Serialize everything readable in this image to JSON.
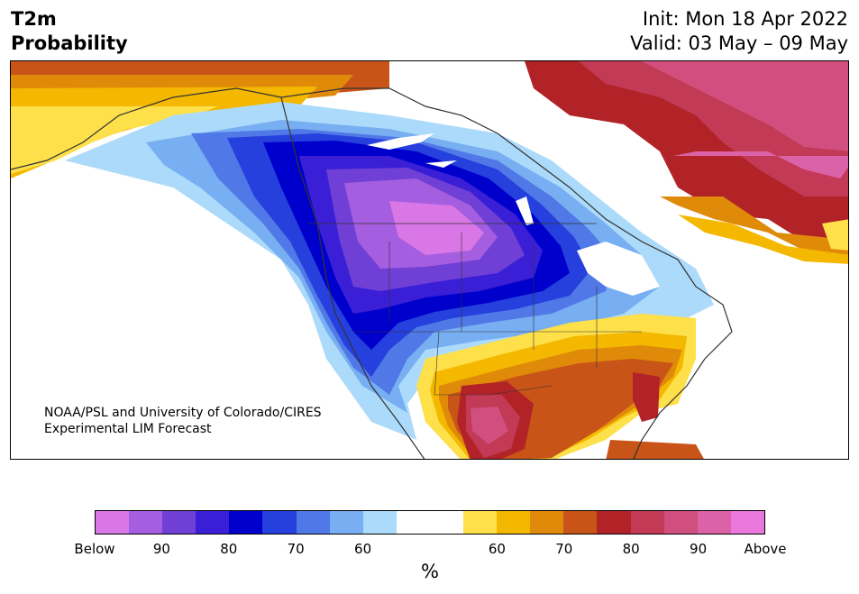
{
  "title": {
    "left_line1": "T2m",
    "left_line2": "Probability",
    "init": "Init: Mon 18 Apr 2022",
    "valid": "Valid: 03 May – 09 May"
  },
  "credit": {
    "line1": "NOAA/PSL and University of Colorado/CIRES",
    "line2": "Experimental LIM Forecast"
  },
  "colorbar": {
    "colors": [
      "#d977e6",
      "#a55ee0",
      "#7040d6",
      "#3a1fd6",
      "#0000cc",
      "#2540dd",
      "#5078e6",
      "#78aef2",
      "#acdafa",
      "#ffffff",
      "#ffffff",
      "#fde04a",
      "#f4b800",
      "#e08a0a",
      "#c85418",
      "#b22328",
      "#c23a55",
      "#d14f7e",
      "#dc62a8",
      "#e878dc"
    ],
    "labels": [
      "Below",
      "90",
      "80",
      "70",
      "60",
      "60",
      "70",
      "80",
      "90",
      "Above"
    ],
    "unit": "%"
  },
  "map": {
    "colors": {
      "below_deep": "#d977e6",
      "below_90": "#a55ee0",
      "below_85": "#7040d6",
      "below_80": "#3a1fd6",
      "below_75": "#0000cc",
      "below_70": "#2540dd",
      "below_65": "#5078e6",
      "below_60": "#78aef2",
      "below_55": "#acdafa",
      "above_55": "#fde04a",
      "above_60": "#f4b800",
      "above_65": "#e08a0a",
      "above_70": "#c85418",
      "above_75": "#b22328",
      "above_80": "#c23a55",
      "above_90": "#d14f7e",
      "above_deep": "#dc62a8",
      "border": "#333333"
    }
  }
}
